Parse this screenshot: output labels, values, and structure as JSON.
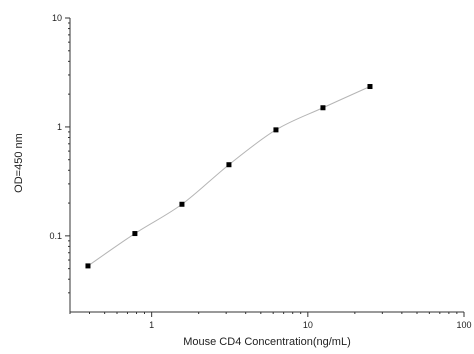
{
  "chart_data": {
    "type": "scatter",
    "title": "",
    "xlabel": "Mouse CD4 Concentration(ng/mL)",
    "ylabel": "OD=450 nm",
    "x_scale": "log",
    "y_scale": "log",
    "xlim": [
      0.3,
      100
    ],
    "ylim": [
      0.02,
      10
    ],
    "x_tick_values": [
      1,
      10,
      100
    ],
    "x_tick_labels": [
      "1",
      "10",
      "100"
    ],
    "y_tick_values": [
      0.1,
      1,
      10
    ],
    "y_tick_labels": [
      "0.1",
      "1",
      "10"
    ],
    "grid": false,
    "legend": "none",
    "marker": "square",
    "curve": "smooth fitted line through points",
    "colors": {
      "marker": "#000000",
      "curve": "#b5b5b5",
      "axis": "#333333"
    },
    "series": [
      {
        "x": [
          0.391,
          0.781,
          1.563,
          3.125,
          6.25,
          12.5,
          25
        ],
        "y": [
          0.053,
          0.105,
          0.195,
          0.45,
          0.94,
          1.5,
          2.35
        ]
      }
    ]
  }
}
